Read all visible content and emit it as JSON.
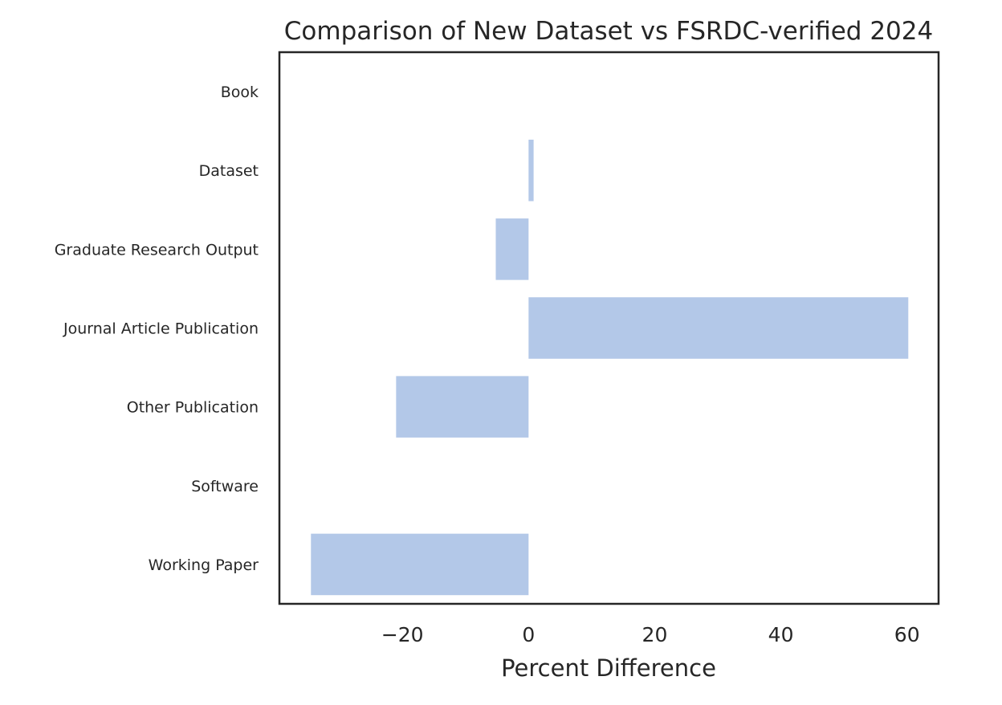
{
  "chart_data": {
    "type": "bar",
    "orientation": "horizontal",
    "title": "Comparison of New Dataset vs FSRDC-verified 2024",
    "xlabel": "Percent Difference",
    "ylabel": "",
    "categories": [
      "Book",
      "Dataset",
      "Graduate Research Output",
      "Journal Article Publication",
      "Other Publication",
      "Software",
      "Working Paper"
    ],
    "values": [
      0,
      0.8,
      -5.2,
      60.2,
      -21.0,
      0,
      -34.5
    ],
    "xlim": [
      -39.5,
      65
    ],
    "xticks": [
      -20,
      0,
      20,
      40,
      60
    ],
    "xtick_labels": [
      "−20",
      "0",
      "20",
      "40",
      "60"
    ],
    "bar_color": "#b3c8e8",
    "grid": false,
    "legend": "none"
  }
}
